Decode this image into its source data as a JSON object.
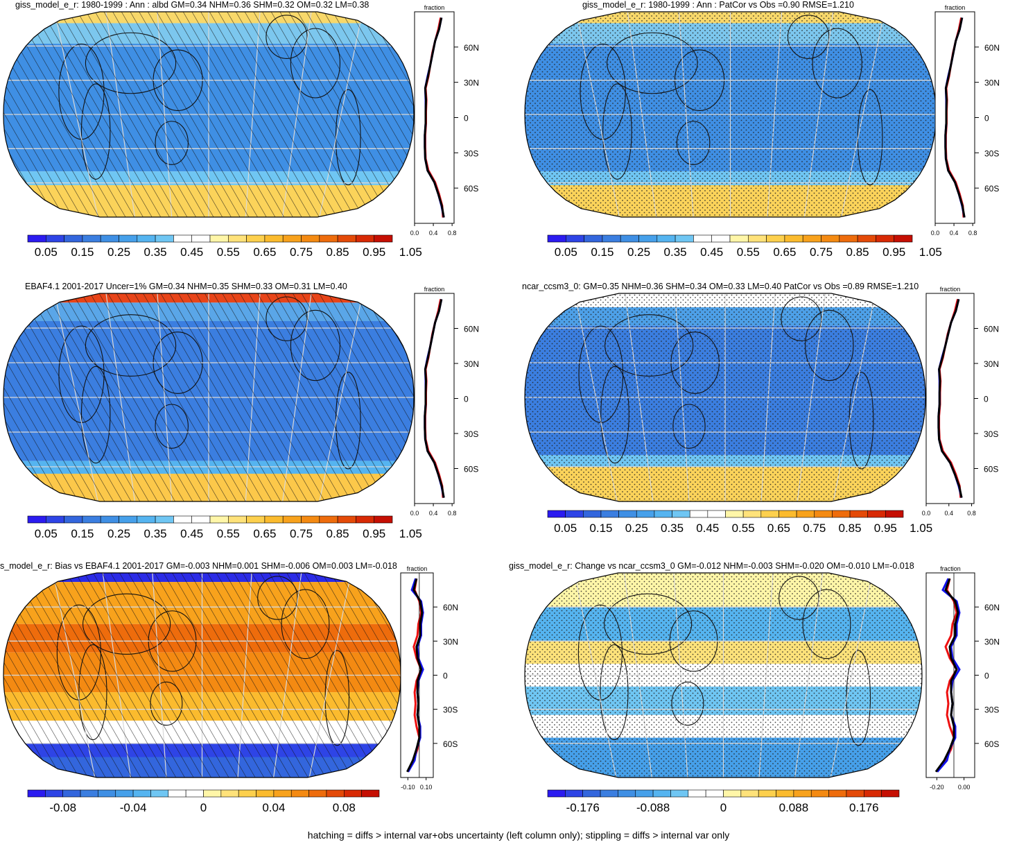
{
  "figure": {
    "footer": "hatching = diffs > internal var+obs uncertainty (left column only); stippling = diffs > internal var only"
  },
  "panels": [
    {
      "title": "giss_model_e_r: 1980-1999 : Ann : albd GM=0.34 NHM=0.36 SHM=0.32 OM=0.32 LM=0.38",
      "overlay": "hatch",
      "field": "abs_giss",
      "colorbar_labels": [
        "0.05",
        "0.15",
        "0.25",
        "0.35",
        "0.45",
        "0.55",
        "0.65",
        "0.75",
        "0.85",
        "0.95",
        "1.05"
      ],
      "profile_unit": "fraction",
      "profile_ticks": [
        "0.0",
        "0.4",
        "0.8"
      ],
      "lat_labels": [
        "60N",
        "30N",
        "0",
        "30S",
        "60S"
      ]
    },
    {
      "title": "giss_model_e_r: 1980-1999 : Ann : PatCor vs Obs =0.90 RMSE=1.210",
      "overlay": "stipple",
      "field": "abs_giss",
      "colorbar_labels": [
        "0.05",
        "0.15",
        "0.25",
        "0.35",
        "0.45",
        "0.55",
        "0.65",
        "0.75",
        "0.85",
        "0.95",
        "1.05"
      ],
      "profile_unit": "fraction",
      "profile_ticks": [
        "0.0",
        "0.4",
        "0.8"
      ],
      "lat_labels": [
        "60N",
        "30N",
        "0",
        "30S",
        "60S"
      ]
    },
    {
      "title": "EBAF4.1 2001-2017 Uncer=1% GM=0.34 NHM=0.35 SHM=0.33 OM=0.31 LM=0.40",
      "overlay": "hatch",
      "field": "abs_obs",
      "colorbar_labels": [
        "0.05",
        "0.15",
        "0.25",
        "0.35",
        "0.45",
        "0.55",
        "0.65",
        "0.75",
        "0.85",
        "0.95",
        "1.05"
      ],
      "profile_unit": "fraction",
      "profile_ticks": [
        "0.0",
        "0.4",
        "0.8"
      ],
      "lat_labels": [
        "60N",
        "30N",
        "0",
        "30S",
        "60S"
      ]
    },
    {
      "title": "ncar_ccsm3_0: GM=0.35 NHM=0.36 SHM=0.34 OM=0.33 LM=0.40 PatCor vs Obs =0.89 RMSE=1.210",
      "overlay": "stipple",
      "field": "abs_ncar",
      "colorbar_labels": [
        "0.05",
        "0.15",
        "0.25",
        "0.35",
        "0.45",
        "0.55",
        "0.65",
        "0.75",
        "0.85",
        "0.95",
        "1.05"
      ],
      "profile_unit": "fraction",
      "profile_ticks": [
        "0.0",
        "0.4",
        "0.8"
      ],
      "lat_labels": [
        "60N",
        "30N",
        "0",
        "30S",
        "60S"
      ]
    },
    {
      "title": "s_model_e_r: Bias vs EBAF4.1 2001-2017 GM=-0.003 NHM=0.001 SHM=-0.006 OM=0.003 LM=-0.018",
      "overlay": "hatch",
      "field": "bias",
      "colorbar_labels": [
        "-0.08",
        "-0.04",
        "0",
        "0.04",
        "0.08"
      ],
      "profile_unit": "fraction",
      "profile_ticks": [
        "-0.10",
        "0.10"
      ],
      "lat_labels": [
        "60N",
        "30N",
        "0",
        "30S",
        "60S"
      ]
    },
    {
      "title": "giss_model_e_r: Change vs ncar_ccsm3_0 GM=-0.012 NHM=-0.003 SHM=-0.020 OM=-0.010 LM=-0.018",
      "overlay": "stipple",
      "field": "change",
      "colorbar_labels": [
        "-0.176",
        "-0.088",
        "0",
        "0.088",
        "0.176"
      ],
      "profile_unit": "fraction",
      "profile_ticks": [
        "-0.20",
        "0.00"
      ],
      "lat_labels": [
        "60N",
        "30N",
        "0",
        "30S",
        "60S"
      ]
    }
  ],
  "colors": {
    "palette": [
      "#2b1bf0",
      "#2e44e6",
      "#3366dd",
      "#3b7ee0",
      "#3f8fe4",
      "#46a0ea",
      "#55b4f0",
      "#6fc6f3",
      "#ffffff",
      "#ffffff",
      "#fff6a8",
      "#ffe27a",
      "#fdd04d",
      "#fbbb2e",
      "#f8a21c",
      "#f48a12",
      "#ee6c0c",
      "#e44a08",
      "#d82a05",
      "#c50f03"
    ],
    "profile_model": "#ee1111",
    "profile_obs": "#1111ee",
    "profile_ref": "#000000"
  },
  "chart_data": [
    {
      "type": "heatmap",
      "title": "giss_model_e_r: 1980-1999 : Ann : albd GM=0.34 NHM=0.36 SHM=0.32 OM=0.32 LM=0.38",
      "zlim": [
        0.0,
        1.1
      ],
      "projection": "Robinson",
      "overlay": "hatching"
    },
    {
      "type": "heatmap",
      "title": "giss_model_e_r: 1980-1999 : Ann : PatCor vs Obs =0.90 RMSE=1.210",
      "zlim": [
        0.0,
        1.1
      ],
      "projection": "Robinson",
      "overlay": "stippling"
    },
    {
      "type": "heatmap",
      "title": "EBAF4.1 2001-2017 Uncer=1% GM=0.34 NHM=0.35 SHM=0.33 OM=0.31 LM=0.40",
      "zlim": [
        0.0,
        1.1
      ],
      "projection": "Robinson",
      "overlay": "hatching"
    },
    {
      "type": "heatmap",
      "title": "ncar_ccsm3_0: GM=0.35 NHM=0.36 SHM=0.34 OM=0.33 LM=0.40 PatCor vs Obs =0.89 RMSE=1.210",
      "zlim": [
        0.0,
        1.1
      ],
      "projection": "Robinson",
      "overlay": "stippling"
    },
    {
      "type": "heatmap",
      "title": "s_model_e_r: Bias vs EBAF4.1 2001-2017 GM=-0.003 NHM=0.001 SHM=-0.006 OM=0.003 LM=-0.018",
      "zlim": [
        -0.1,
        0.1
      ],
      "projection": "Robinson",
      "overlay": "hatching"
    },
    {
      "type": "heatmap",
      "title": "giss_model_e_r: Change vs ncar_ccsm3_0 GM=-0.012 NHM=-0.003 SHM=-0.020 OM=-0.010 LM=-0.018",
      "zlim": [
        -0.22,
        0.22
      ],
      "projection": "Robinson",
      "overlay": "stippling"
    },
    {
      "type": "line",
      "xlabel": "fraction",
      "ylim": [
        -90,
        90
      ],
      "xlim": [
        0,
        1
      ],
      "x": [
        -85,
        -75,
        -65,
        -55,
        -45,
        -35,
        -25,
        -15,
        -5,
        5,
        15,
        25,
        35,
        45,
        55,
        65,
        75,
        85
      ],
      "series": [
        {
          "values": [
            0.72,
            0.7,
            0.62,
            0.52,
            0.35,
            0.28,
            0.27,
            0.27,
            0.29,
            0.29,
            0.3,
            0.28,
            0.35,
            0.4,
            0.45,
            0.52,
            0.6,
            0.66
          ]
        },
        {
          "values": [
            0.74,
            0.68,
            0.6,
            0.5,
            0.33,
            0.27,
            0.26,
            0.26,
            0.28,
            0.28,
            0.28,
            0.27,
            0.33,
            0.4,
            0.46,
            0.52,
            0.62,
            0.68
          ]
        },
        {
          "values": [
            0.74,
            0.69,
            0.6,
            0.5,
            0.33,
            0.27,
            0.26,
            0.26,
            0.28,
            0.28,
            0.29,
            0.27,
            0.34,
            0.4,
            0.46,
            0.52,
            0.62,
            0.68
          ]
        }
      ]
    },
    {
      "type": "line",
      "xlabel": "fraction",
      "ylim": [
        -90,
        90
      ],
      "xlim": [
        -0.2,
        0.15
      ],
      "x": [
        -85,
        -75,
        -65,
        -55,
        -45,
        -35,
        -25,
        -15,
        -5,
        5,
        15,
        25,
        35,
        45,
        55,
        65,
        75,
        85
      ],
      "series": [
        {
          "values": [
            -0.12,
            -0.06,
            -0.02,
            0.0,
            -0.03,
            -0.05,
            -0.04,
            -0.05,
            -0.03,
            0.02,
            -0.03,
            -0.06,
            -0.02,
            -0.01,
            0.02,
            0.0,
            -0.05,
            -0.03
          ]
        },
        {
          "values": [
            -0.12,
            -0.05,
            -0.03,
            0.01,
            0.01,
            -0.02,
            -0.01,
            -0.02,
            -0.01,
            0.04,
            -0.01,
            -0.02,
            0.02,
            0.02,
            0.04,
            0.02,
            -0.08,
            -0.04
          ]
        },
        {
          "values": [
            -0.13,
            -0.07,
            -0.03,
            0.0,
            0.0,
            -0.02,
            -0.01,
            -0.02,
            -0.02,
            0.02,
            -0.02,
            -0.03,
            0.01,
            0.01,
            0.03,
            0.01,
            -0.06,
            -0.03
          ]
        }
      ]
    }
  ]
}
